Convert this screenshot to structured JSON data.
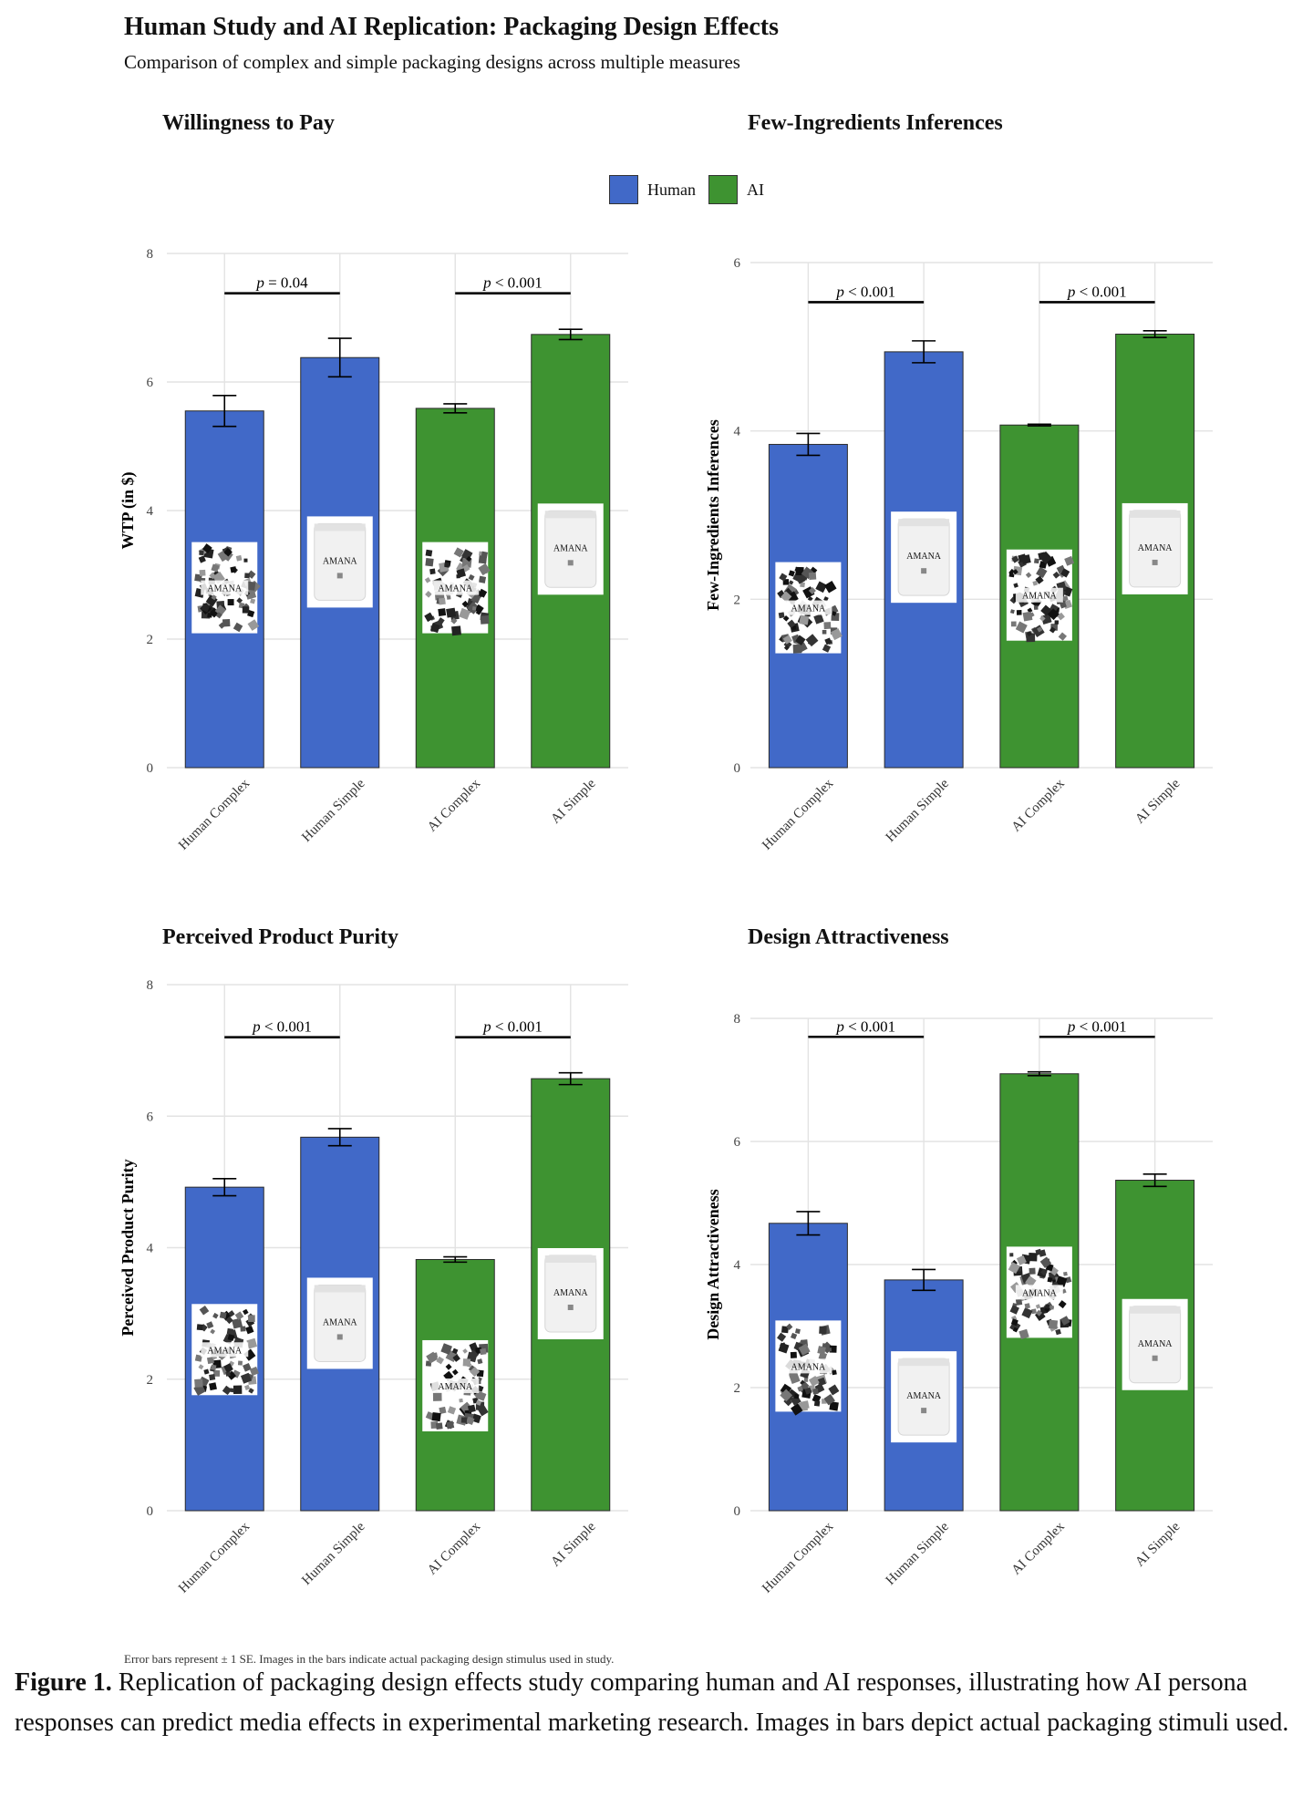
{
  "title": "Human Study and AI Replication: Packaging Design Effects",
  "subtitle": "Comparison of complex and simple packaging designs across multiple measures",
  "legend": [
    {
      "label": "Human",
      "color": "#4169C8"
    },
    {
      "label": "AI",
      "color": "#3E9331"
    }
  ],
  "footnote": "Error bars represent ± 1 SE. Images in the bars indicate actual packaging design stimulus used in study.",
  "caption": {
    "lead": "Figure 1.",
    "text": " Replication of packaging design effects study comparing human and AI responses, illustrating how AI persona responses can predict media effects in experimental marketing research. Images in bars depict actual packaging stimuli used."
  },
  "package_label": "AMANA",
  "chart_data": [
    {
      "type": "bar",
      "title": "Willingness to Pay",
      "ylabel": "WTP (in $)",
      "ylim": [
        0,
        8
      ],
      "yticks": [
        0,
        2,
        4,
        6,
        8
      ],
      "categories": [
        "Human Complex",
        "Human Simple",
        "AI Complex",
        "AI Simple"
      ],
      "groups": [
        "Human",
        "Human",
        "AI",
        "AI"
      ],
      "values": [
        5.55,
        6.38,
        5.59,
        6.74
      ],
      "se": [
        0.24,
        0.3,
        0.07,
        0.08
      ],
      "stimulus": [
        "complex",
        "simple",
        "complex",
        "simple"
      ],
      "stimulus_center": [
        2.8,
        3.2,
        2.8,
        3.4
      ],
      "comparisons": [
        {
          "from": 0,
          "to": 1,
          "label": "p = 0.04",
          "y": 7.38
        },
        {
          "from": 2,
          "to": 3,
          "label": "p < 0.001",
          "y": 7.38
        }
      ]
    },
    {
      "type": "bar",
      "title": "Few-Ingredients Inferences",
      "ylabel": "Few-Ingredients Inferences",
      "ylim": [
        0,
        6
      ],
      "yticks": [
        0,
        2,
        4,
        6
      ],
      "categories": [
        "Human Complex",
        "Human Simple",
        "AI Complex",
        "AI Simple"
      ],
      "groups": [
        "Human",
        "Human",
        "AI",
        "AI"
      ],
      "values": [
        3.84,
        4.94,
        4.07,
        5.15
      ],
      "se": [
        0.13,
        0.13,
        0.01,
        0.04
      ],
      "stimulus": [
        "complex",
        "simple",
        "complex",
        "simple"
      ],
      "stimulus_center": [
        1.9,
        2.5,
        2.05,
        2.6
      ],
      "comparisons": [
        {
          "from": 0,
          "to": 1,
          "label": "p < 0.001",
          "y": 5.53
        },
        {
          "from": 2,
          "to": 3,
          "label": "p < 0.001",
          "y": 5.53
        }
      ]
    },
    {
      "type": "bar",
      "title": "Perceived Product Purity",
      "ylabel": "Perceived Product Purity",
      "ylim": [
        0,
        8
      ],
      "yticks": [
        0,
        2,
        4,
        6,
        8
      ],
      "categories": [
        "Human Complex",
        "Human Simple",
        "AI Complex",
        "AI Simple"
      ],
      "groups": [
        "Human",
        "Human",
        "AI",
        "AI"
      ],
      "values": [
        4.92,
        5.68,
        3.82,
        6.57
      ],
      "se": [
        0.13,
        0.13,
        0.04,
        0.09
      ],
      "stimulus": [
        "complex",
        "simple",
        "complex",
        "simple"
      ],
      "stimulus_center": [
        2.45,
        2.85,
        1.9,
        3.3
      ],
      "comparisons": [
        {
          "from": 0,
          "to": 1,
          "label": "p < 0.001",
          "y": 7.2
        },
        {
          "from": 2,
          "to": 3,
          "label": "p < 0.001",
          "y": 7.2
        }
      ]
    },
    {
      "type": "bar",
      "title": "Design Attractiveness",
      "ylabel": "Design Attractiveness",
      "ylim": [
        0,
        8
      ],
      "yticks": [
        0,
        2,
        4,
        6,
        8
      ],
      "categories": [
        "Human Complex",
        "Human Simple",
        "AI Complex",
        "AI Simple"
      ],
      "groups": [
        "Human",
        "Human",
        "AI",
        "AI"
      ],
      "values": [
        4.67,
        3.75,
        7.1,
        5.37
      ],
      "se": [
        0.19,
        0.17,
        0.03,
        0.1
      ],
      "stimulus": [
        "complex",
        "simple",
        "complex",
        "simple"
      ],
      "stimulus_center": [
        2.35,
        1.85,
        3.55,
        2.7
      ],
      "comparisons": [
        {
          "from": 0,
          "to": 1,
          "label": "p < 0.001",
          "y": 7.7
        },
        {
          "from": 2,
          "to": 3,
          "label": "p < 0.001",
          "y": 7.7
        }
      ]
    }
  ]
}
